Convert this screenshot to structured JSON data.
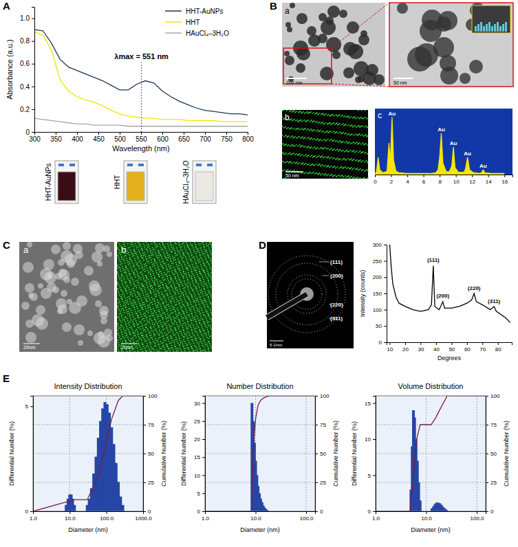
{
  "figure": {
    "panel_labels": [
      "A",
      "B",
      "C",
      "D",
      "E"
    ],
    "A": {
      "cuvettes": [
        {
          "label": "HHT-AuNPs",
          "color": "#3a0d16"
        },
        {
          "label": "HHT",
          "color": "#e3b01c"
        },
        {
          "label": "HAuCl₄–3H₂O",
          "color": "#ece8e2"
        }
      ]
    },
    "B": {
      "sub_labels": [
        "a",
        "b",
        "c"
      ],
      "scale_bars": [
        "200 nm",
        "50 nm",
        "50 nm"
      ]
    },
    "C": {
      "sub_labels": [
        "a",
        "b"
      ],
      "scale_bars": [
        "20nm",
        "20nm"
      ]
    },
    "D": {
      "rings": [
        "(111)",
        "(200)",
        "(220)",
        "(311)"
      ],
      "scale_bar": "5 1/nm"
    }
  },
  "chart_data": [
    {
      "type": "line",
      "x_label": "Wavelength (nm)",
      "y_label": "Absorbance (a.u.)",
      "x": [
        300,
        320,
        340,
        360,
        380,
        400,
        420,
        440,
        460,
        480,
        500,
        520,
        540,
        560,
        580,
        600,
        620,
        640,
        660,
        680,
        700,
        720,
        740,
        760,
        780,
        800
      ],
      "xlim": [
        300,
        800
      ],
      "xticks": [
        300,
        350,
        400,
        450,
        500,
        550,
        600,
        650,
        700,
        750,
        800
      ],
      "ylim": [
        0,
        1.1
      ],
      "yticks": [
        0,
        0.2,
        0.4,
        0.6,
        0.8,
        {
          "value": 1,
          "label": "1.0"
        }
      ],
      "legend": "upper right",
      "series": [
        {
          "name": "HHT-AuNPs",
          "color": "#1c3557",
          "values": [
            0.9,
            0.89,
            0.78,
            0.64,
            0.57,
            0.54,
            0.51,
            0.48,
            0.45,
            0.41,
            0.37,
            0.37,
            0.42,
            0.45,
            0.43,
            0.36,
            0.31,
            0.27,
            0.24,
            0.21,
            0.19,
            0.18,
            0.17,
            0.16,
            0.16,
            0.15
          ]
        },
        {
          "name": "HHT",
          "color": "#f2e600",
          "values": [
            0.88,
            0.85,
            0.72,
            0.46,
            0.36,
            0.31,
            0.28,
            0.26,
            0.23,
            0.19,
            0.16,
            0.14,
            0.13,
            0.12,
            0.12,
            0.11,
            0.11,
            0.11,
            0.1,
            0.1,
            0.1,
            0.1,
            0.09,
            0.09,
            0.09,
            0.09
          ]
        },
        {
          "name": "HAuCl₄–3H₂O",
          "color": "#a6a6a6",
          "values": [
            0.12,
            0.11,
            0.1,
            0.09,
            0.08,
            0.07,
            0.07,
            0.06,
            0.06,
            0.06,
            0.06,
            0.05,
            0.05,
            0.05,
            0.05,
            0.05,
            0.05,
            0.05,
            0.05,
            0.05,
            0.05,
            0.05,
            0.05,
            0.05,
            0.05,
            0.05
          ]
        }
      ],
      "annotations": [
        {
          "text": "λmax = 551 nm",
          "x": 551
        }
      ]
    },
    {
      "type": "area",
      "tick_labels": "x",
      "x": [
        0,
        0.2,
        0.4,
        0.6,
        1.0,
        1.5,
        1.74,
        1.9,
        2.12,
        2.3,
        2.6,
        3.0,
        4.0,
        5.0,
        6.0,
        7.0,
        7.5,
        7.8,
        8.0,
        8.2,
        8.4,
        8.8,
        9.2,
        9.5,
        9.7,
        9.9,
        10.3,
        11.0,
        11.2,
        11.44,
        11.7,
        12.2,
        13.0,
        13.2,
        13.38,
        13.6,
        14.5,
        16.0
      ],
      "xlim": [
        0,
        17
      ],
      "xticks": [
        0,
        2,
        4,
        6,
        8,
        10,
        12,
        14,
        16
      ],
      "ylim": [
        0,
        115
      ],
      "series": [
        {
          "color": "#f5e600",
          "values": [
            0,
            5,
            30,
            8,
            3,
            6,
            55,
            20,
            100,
            25,
            6,
            3,
            2,
            2,
            2,
            2,
            3,
            8,
            30,
            72,
            20,
            5,
            5,
            15,
            48,
            12,
            4,
            4,
            10,
            30,
            8,
            3,
            2,
            4,
            8,
            3,
            2,
            2
          ]
        }
      ],
      "annotations": [
        {
          "text": "Au",
          "x": 2.12,
          "y": 100
        },
        {
          "text": "Au",
          "x": 8.2,
          "y": 72
        },
        {
          "text": "Au",
          "x": 9.7,
          "y": 48
        },
        {
          "text": "Au",
          "x": 11.44,
          "y": 30
        },
        {
          "text": "Au",
          "x": 13.38,
          "y": 8
        }
      ]
    },
    {
      "type": "line",
      "x_label": "Degrees",
      "y_label": "Intensity (counts)",
      "x": [
        10,
        11,
        12,
        14,
        16,
        20,
        25,
        30,
        35,
        37,
        38.2,
        39.2,
        42,
        44.4,
        45.5,
        50,
        55,
        60,
        63,
        64.6,
        66,
        70,
        75,
        77.5,
        79,
        85,
        88
      ],
      "xlim": [
        8,
        89
      ],
      "xticks": [
        10,
        20,
        30,
        40,
        50,
        60,
        70,
        80
      ],
      "ylim": [
        0,
        300
      ],
      "yticks": [
        0,
        50,
        100,
        150,
        200,
        250,
        300
      ],
      "series": [
        {
          "color": "#000000",
          "values": [
            300,
            230,
            180,
            140,
            120,
            110,
            100,
            95,
            100,
            115,
            235,
            110,
            100,
            125,
            105,
            105,
            110,
            120,
            130,
            150,
            125,
            115,
            100,
            110,
            95,
            75,
            60
          ]
        }
      ],
      "annotations": [
        {
          "text": "(111)",
          "x": 38.2,
          "y": 240
        },
        {
          "text": "(200)",
          "x": 44.4,
          "y": 130
        },
        {
          "text": "(220)",
          "x": 64.6,
          "y": 155
        },
        {
          "text": "(311)",
          "x": 77.5,
          "y": 115
        }
      ]
    },
    {
      "type": "bar",
      "title": "Intensity Distribution",
      "x_label": "Diameter (nm)",
      "y_label": "Differential Number (%)",
      "y2_label": "Cumulative Number (%)",
      "log": "x",
      "grid": true,
      "xlim": [
        1,
        1000
      ],
      "xticks": [
        {
          "value": 1,
          "label": "1.0"
        },
        {
          "value": 10,
          "label": "10.0"
        },
        {
          "value": 100,
          "label": "100.0"
        },
        {
          "value": 1000,
          "label": "1000.0"
        }
      ],
      "ylim": [
        0,
        5.5
      ],
      "yticks": [
        0,
        5
      ],
      "y2lim": [
        0,
        100
      ],
      "y2ticks": [
        0,
        25,
        50,
        75,
        100
      ],
      "series": [
        {
          "type": "bar",
          "color": "#2646a6",
          "x": [
            8,
            9,
            10,
            11,
            12,
            13.5,
            30,
            34,
            39,
            45,
            52,
            60,
            69,
            79,
            91,
            105,
            121,
            139,
            160,
            184,
            212,
            244,
            281
          ],
          "values": [
            0.3,
            0.6,
            0.8,
            0.8,
            0.6,
            0.3,
            0.3,
            0.6,
            1.1,
            1.8,
            2.6,
            3.5,
            4.3,
            4.9,
            5.2,
            5.1,
            4.7,
            4.0,
            3.2,
            2.3,
            1.4,
            0.7,
            0.3
          ]
        },
        {
          "type": "line",
          "axis": "y2",
          "color": "#7b1e3c",
          "x": [
            1,
            13.5,
            30,
            60,
            91,
            139,
            212,
            281,
            1000
          ],
          "values": [
            0,
            10,
            10,
            30,
            55,
            80,
            96,
            100,
            100
          ]
        }
      ]
    },
    {
      "type": "bar",
      "title": "Number Distribution",
      "x_label": "Diameter (nm)",
      "y_label": "Differential Number (%)",
      "y2_label": "Cumulative Number (%)",
      "log": "x",
      "grid": true,
      "xlim": [
        1,
        150
      ],
      "xticks": [
        {
          "value": 1,
          "label": "1.0"
        },
        {
          "value": 10,
          "label": "10.0"
        },
        {
          "value": 100,
          "label": "100.0"
        }
      ],
      "ylim": [
        0,
        32
      ],
      "yticks": [
        0,
        5,
        10,
        15,
        20,
        25,
        30
      ],
      "y2lim": [
        0,
        100
      ],
      "y2ticks": [
        0,
        25,
        50,
        75,
        100
      ],
      "series": [
        {
          "type": "bar",
          "color": "#2646a6",
          "x": [
            8.5,
            9,
            9.5,
            10,
            10.6,
            11.2,
            11.9,
            12.6,
            13.4,
            14.2,
            15.1,
            16,
            17
          ],
          "values": [
            30,
            25,
            19,
            14,
            10,
            7,
            5,
            3.5,
            2.5,
            1.6,
            1,
            0.6,
            0.3
          ]
        },
        {
          "type": "line",
          "axis": "y2",
          "color": "#7b1e3c",
          "x": [
            1,
            8.3,
            9,
            10,
            11.2,
            12.6,
            14.2,
            17,
            20,
            150
          ],
          "values": [
            0,
            0,
            55,
            80,
            92,
            96,
            98,
            99.5,
            100,
            100
          ]
        }
      ]
    },
    {
      "type": "bar",
      "title": "Volume Distribution",
      "x_label": "Diameter (nm)",
      "y_label": "Differential Number (%)",
      "y2_label": "Cumulative Number (%)",
      "log": "x",
      "grid": true,
      "xlim": [
        1,
        150
      ],
      "xticks": [
        {
          "value": 1,
          "label": "1.0"
        },
        {
          "value": 10,
          "label": "10.0"
        },
        {
          "value": 100,
          "label": "100.0"
        }
      ],
      "ylim": [
        0,
        16
      ],
      "yticks": [
        0,
        5,
        10,
        15
      ],
      "y2lim": [
        0,
        100
      ],
      "y2ticks": [
        0,
        25,
        50,
        75,
        100
      ],
      "series": [
        {
          "type": "bar",
          "color": "#2646a6",
          "x": [
            5,
            5.3,
            5.6,
            5.9,
            6.3,
            6.7,
            7.1,
            7.6,
            13,
            14,
            15,
            16,
            17.3,
            18.6,
            20,
            21.6,
            23.3,
            25
          ],
          "values": [
            3,
            9,
            14,
            13,
            10,
            7,
            4,
            1.5,
            0.4,
            0.7,
            1,
            1.2,
            1.2,
            1.1,
            0.9,
            0.6,
            0.4,
            0.2
          ]
        },
        {
          "type": "line",
          "axis": "y2",
          "color": "#7b1e3c",
          "x": [
            1,
            4.8,
            5.6,
            6.3,
            7.6,
            8,
            12.5,
            15,
            18.6,
            23.3,
            26,
            150
          ],
          "values": [
            0,
            0,
            30,
            60,
            75,
            75,
            75,
            80,
            88,
            96,
            100,
            100
          ]
        }
      ]
    }
  ]
}
